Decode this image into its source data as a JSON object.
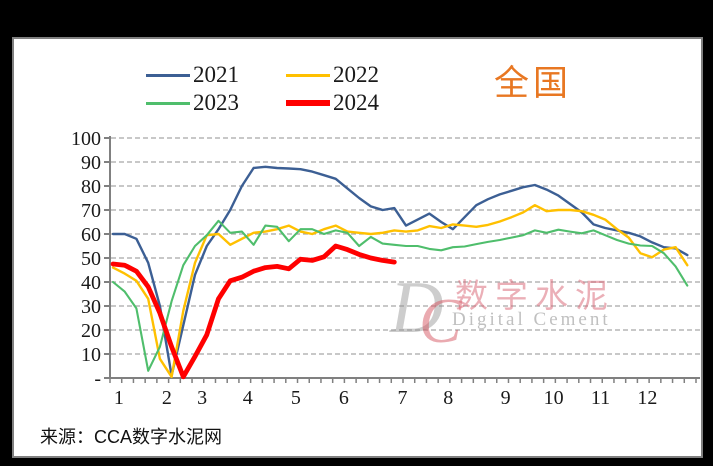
{
  "window": {
    "outer_background": "#000000",
    "panel_background": "#ffffff",
    "panel_border_color": "#808080"
  },
  "region_title": "全国",
  "region_title_color": "#E87722",
  "legend": [
    {
      "label": "2021",
      "color": "#3C5F94",
      "thick": false
    },
    {
      "label": "2022",
      "color": "#FFC000",
      "thick": false
    },
    {
      "label": "2023",
      "color": "#4FBE6C",
      "thick": false
    },
    {
      "label": "2024",
      "color": "#FF0000",
      "thick": true
    }
  ],
  "watermark": {
    "logo_d": "D",
    "logo_c": "C",
    "cn": "数字水泥",
    "en": "Digital Cement"
  },
  "source": "来源：CCA数字水泥网",
  "chart_data": {
    "type": "line",
    "title": "全国",
    "x_unit": "week (weekly data, Jan–Dec)",
    "months": [
      "1",
      "2",
      "3",
      "4",
      "5",
      "6",
      "7",
      "8",
      "9",
      "10",
      "11",
      "12"
    ],
    "month_week_centers": [
      1.5,
      5.6,
      8.6,
      12.5,
      16.6,
      20.7,
      25.7,
      29.6,
      34.5,
      38.6,
      42.6,
      46.6
    ],
    "n_weeks": 50,
    "ylim": [
      0,
      100
    ],
    "ytick_interval": 10,
    "ytick_labels": [
      "-",
      "10",
      "20",
      "30",
      "40",
      "50",
      "60",
      "70",
      "80",
      "90",
      "100"
    ],
    "grid": "horizontal dashed",
    "legend_position": "top",
    "axis_color": "#808080",
    "grid_color": "#a6a6a6",
    "series": [
      {
        "name": "2021",
        "color": "#3C5F94",
        "width": 2.4,
        "values": [
          60,
          60,
          58,
          48,
          30,
          1,
          22,
          43,
          55,
          62,
          70,
          80,
          87.5,
          88,
          87.5,
          87.3,
          87,
          86,
          84.5,
          83,
          79,
          75,
          71.5,
          70,
          70.8,
          63.5,
          66,
          68.5,
          65,
          62,
          67,
          72,
          74.5,
          76.5,
          78,
          79.5,
          80.4,
          78.5,
          76,
          72.5,
          69,
          64,
          62.5,
          61.5,
          60.5,
          59,
          56.5,
          54.5,
          54,
          51.2
        ]
      },
      {
        "name": "2022",
        "color": "#FFC000",
        "width": 2.4,
        "values": [
          46,
          43.5,
          40.5,
          33,
          8,
          0.5,
          28,
          48,
          59.5,
          60,
          55.5,
          58,
          60.5,
          61,
          62,
          63.5,
          61,
          60,
          62,
          63.5,
          61,
          60.5,
          60,
          60.5,
          61.5,
          61,
          61.5,
          63.3,
          62.5,
          64,
          63.5,
          63,
          63.8,
          65.2,
          67,
          69,
          72,
          69.5,
          70,
          70,
          69.5,
          68,
          66,
          62,
          58.5,
          52,
          50.3,
          53.5,
          54.5,
          47
        ]
      },
      {
        "name": "2023",
        "color": "#4FBE6C",
        "width": 2.1,
        "values": [
          40,
          36,
          29,
          3,
          13,
          32,
          47,
          55,
          59.5,
          65.5,
          60.5,
          61,
          55.5,
          63.5,
          63,
          57,
          62,
          62,
          60,
          61.5,
          60.5,
          55,
          58.8,
          56,
          55.5,
          55,
          55,
          53.8,
          53.2,
          54.5,
          54.8,
          55.8,
          56.7,
          57.5,
          58.5,
          59.5,
          61.5,
          60.5,
          61.8,
          61,
          60.3,
          61.5,
          59.5,
          57.5,
          56,
          55.2,
          55,
          52,
          46.5,
          38.5
        ]
      },
      {
        "name": "2024",
        "color": "#FF0000",
        "width": 4.8,
        "values": [
          47.5,
          47,
          44.5,
          38,
          27,
          13,
          0.5,
          9,
          18,
          33,
          40.5,
          42,
          44.5,
          46,
          46.5,
          45.5,
          49.5,
          49,
          50.5,
          55,
          53.5,
          51.5,
          50,
          49,
          48.3
        ]
      }
    ]
  }
}
